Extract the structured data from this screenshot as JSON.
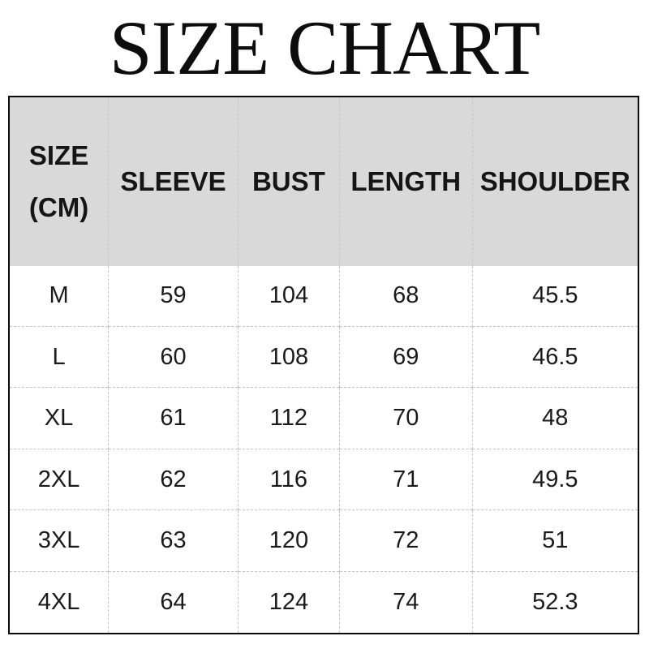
{
  "title": "SIZE CHART",
  "header": {
    "size_line1": "SIZE",
    "size_line2": "(CM)",
    "cols": [
      "SLEEVE",
      "BUST",
      "LENGTH",
      "SHOULDER"
    ]
  },
  "chart_data": {
    "type": "table",
    "title": "SIZE CHART",
    "columns": [
      "SIZE (CM)",
      "SLEEVE",
      "BUST",
      "LENGTH",
      "SHOULDER"
    ],
    "rows": [
      [
        "M",
        59,
        104,
        68,
        45.5
      ],
      [
        "L",
        60,
        108,
        69,
        46.5
      ],
      [
        "XL",
        61,
        112,
        70,
        48
      ],
      [
        "2XL",
        62,
        116,
        71,
        49.5
      ],
      [
        "3XL",
        63,
        120,
        72,
        51
      ],
      [
        "4XL",
        64,
        124,
        74,
        52.3
      ]
    ]
  },
  "colors": {
    "header_bg": "#d9d9d9",
    "border": "#0b0b0b",
    "divider": "#c5c5c5",
    "text": "#1a1a1a"
  }
}
